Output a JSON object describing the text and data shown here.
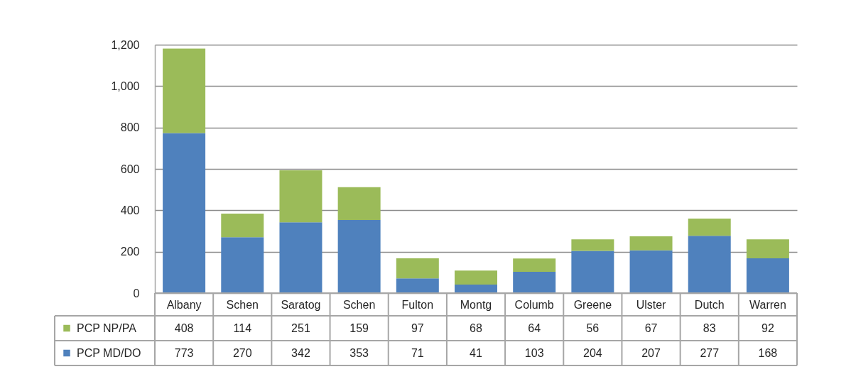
{
  "chart_data": {
    "type": "bar",
    "categories": [
      "Albany",
      "Schen",
      "Saratog",
      "Schen",
      "Fulton",
      "Montg",
      "Columb",
      "Greene",
      "Ulster",
      "Dutch",
      "Warren"
    ],
    "stacked": true,
    "series": [
      {
        "name": "PCP MD/DO",
        "color": "#4f81bd",
        "values": [
          773,
          270,
          342,
          353,
          71,
          41,
          103,
          204,
          207,
          277,
          168
        ]
      },
      {
        "name": "PCP NP/PA",
        "color": "#9bbb59",
        "values": [
          408,
          114,
          251,
          159,
          97,
          68,
          64,
          56,
          67,
          83,
          92
        ]
      }
    ],
    "ylim": [
      0,
      1200
    ],
    "yticks": [
      0,
      200,
      400,
      600,
      800,
      {
        "value": 1000,
        "label": "1,000"
      },
      {
        "value": 1200,
        "label": "1,200"
      }
    ],
    "grid": "y",
    "legend": "bottom left",
    "data_labels": true
  }
}
